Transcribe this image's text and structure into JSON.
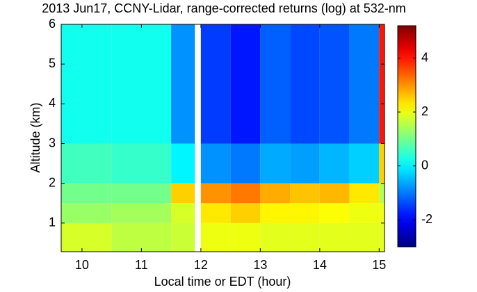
{
  "chart_data": {
    "type": "heatmap",
    "title": "2013 Jun17, CCNY-Lidar, range-corrected returns (log) at 532-nm",
    "x_label": "Local time or EDT (hour)",
    "y_label": "Altitude (km)",
    "colormap": "jet",
    "x_edges": [
      9.65,
      10.5,
      11.5,
      11.9,
      12,
      12.5,
      13,
      13.5,
      14,
      14.5,
      15,
      15.09
    ],
    "y_edges": [
      0.28,
      1,
      1.5,
      2,
      3,
      6
    ],
    "z": [
      [
        1.8,
        1.6,
        1.7,
        null,
        2.0,
        2.0,
        1.9,
        1.9,
        1.9,
        1.9,
        1.9
      ],
      [
        1.3,
        1.4,
        1.8,
        null,
        2.3,
        2.5,
        2.2,
        2.2,
        2.1,
        2.0,
        2.0
      ],
      [
        1.0,
        1.0,
        2.5,
        null,
        3.0,
        3.2,
        2.8,
        2.6,
        2.7,
        2.3,
        1.5
      ],
      [
        0.6,
        0.5,
        0.0,
        null,
        -0.8,
        -1.0,
        -0.6,
        -0.7,
        -0.5,
        -0.3,
        2.5
      ],
      [
        0.2,
        0.2,
        -0.8,
        null,
        -1.5,
        -1.8,
        -1.2,
        -1.4,
        -1.3,
        -1.0,
        4.0
      ]
    ],
    "xlim": [
      9.65,
      15.09
    ],
    "xticks": [
      10,
      11,
      12,
      13,
      14,
      15
    ],
    "ylim": [
      0.28,
      6
    ],
    "yticks": [
      1,
      2,
      3,
      4,
      5,
      6
    ],
    "clim": [
      -3,
      5.2
    ],
    "cticks": [
      -2,
      0,
      2,
      4
    ]
  }
}
